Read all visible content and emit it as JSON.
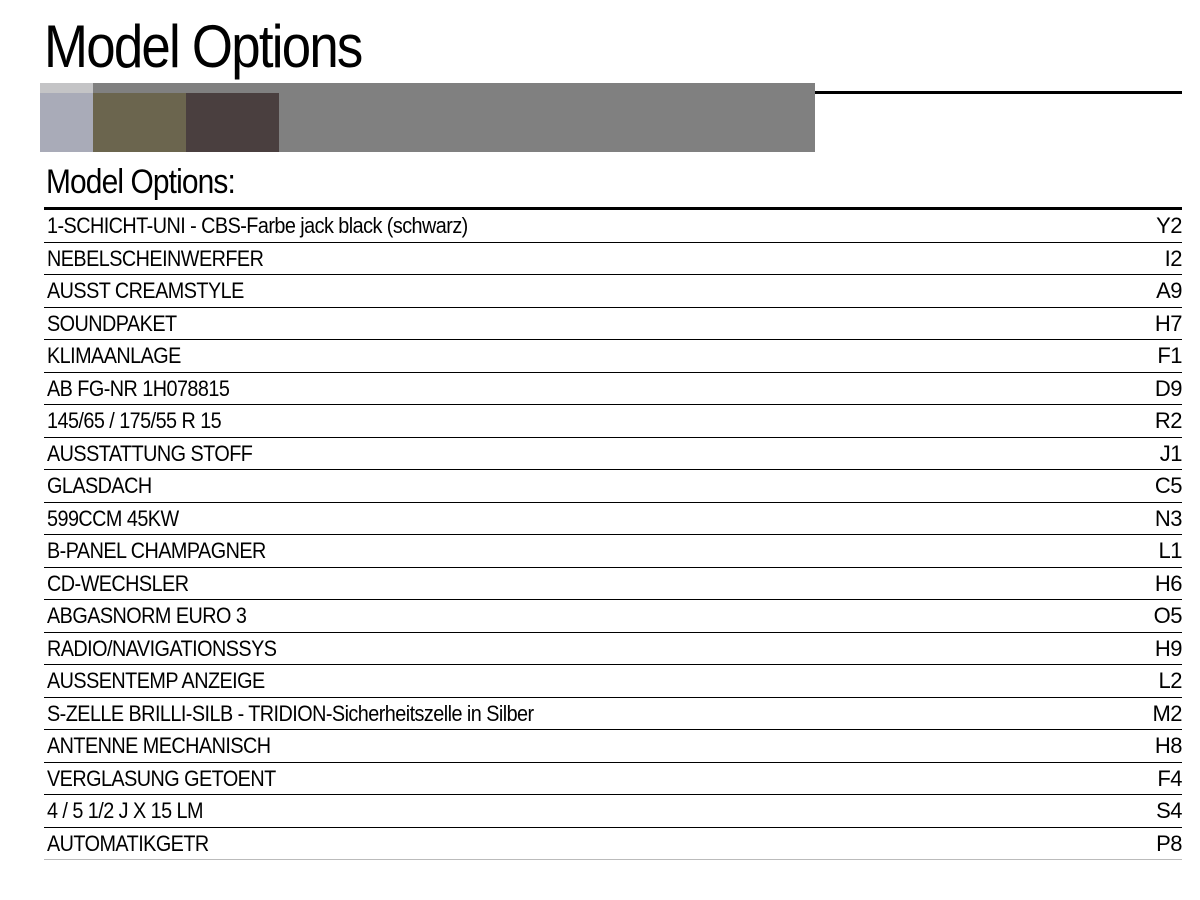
{
  "page_title": "Model Options",
  "section_title": "Model Options:",
  "colors": {
    "swatch_1": "#a9abb8",
    "swatch_2": "#6b654e",
    "swatch_3": "#4a3f3f",
    "band": "#808080"
  },
  "options": [
    {
      "description": "1-SCHICHT-UNI - CBS-Farbe jack black (schwarz)",
      "code": "Y2"
    },
    {
      "description": "NEBELSCHEINWERFER",
      "code": "I2"
    },
    {
      "description": "AUSST CREAMSTYLE",
      "code": "A9"
    },
    {
      "description": "SOUNDPAKET",
      "code": "H7"
    },
    {
      "description": "KLIMAANLAGE",
      "code": "F1"
    },
    {
      "description": "AB FG-NR 1H078815",
      "code": "D9"
    },
    {
      "description": "145/65 / 175/55 R 15",
      "code": "R2"
    },
    {
      "description": "AUSSTATTUNG STOFF",
      "code": "J1"
    },
    {
      "description": "GLASDACH",
      "code": "C5"
    },
    {
      "description": "599CCM 45KW",
      "code": "N3"
    },
    {
      "description": "B-PANEL CHAMPAGNER",
      "code": "L1"
    },
    {
      "description": "CD-WECHSLER",
      "code": "H6"
    },
    {
      "description": "ABGASNORM EURO 3",
      "code": "O5"
    },
    {
      "description": "RADIO/NAVIGATIONSSYS",
      "code": "H9"
    },
    {
      "description": "AUSSENTEMP ANZEIGE",
      "code": "L2"
    },
    {
      "description": "S-ZELLE BRILLI-SILB - TRIDION-Sicherheitszelle in Silber",
      "code": "M2"
    },
    {
      "description": "ANTENNE MECHANISCH",
      "code": "H8"
    },
    {
      "description": "VERGLASUNG GETOENT",
      "code": "F4"
    },
    {
      "description": "4 / 5 1/2 J X 15 LM",
      "code": "S4"
    },
    {
      "description": "AUTOMATIKGETR",
      "code": "P8"
    }
  ]
}
